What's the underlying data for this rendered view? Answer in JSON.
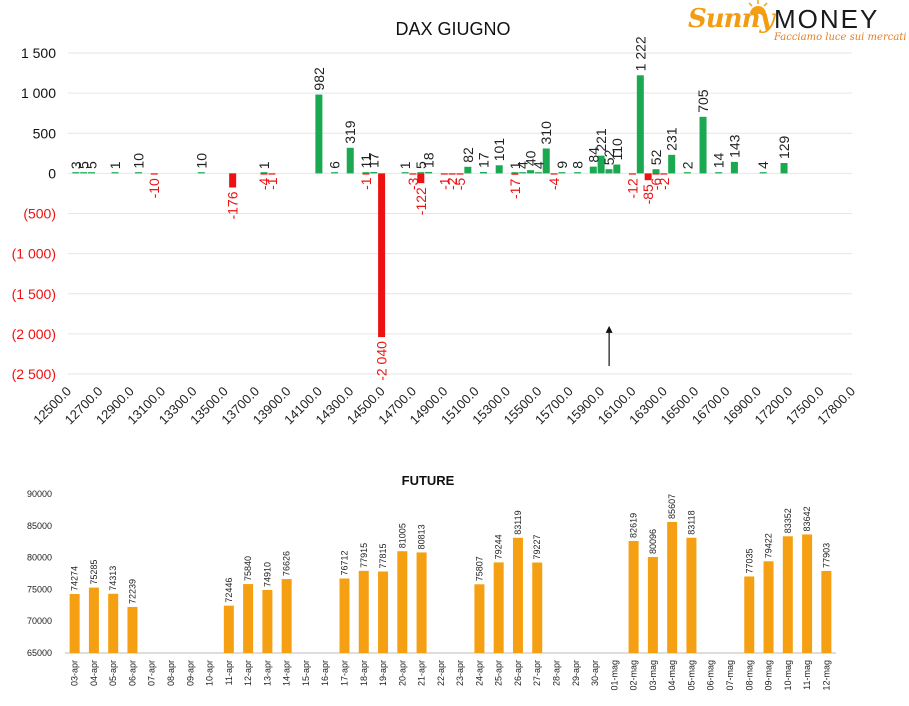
{
  "brand": {
    "name_part1": "Sunny",
    "name_part2": "MONEY",
    "tagline": "Facciamo luce sui mercati"
  },
  "colors": {
    "positive": "#1aa850",
    "negative": "#ee1111",
    "future_bar": "#f5a012",
    "negative_label": "#ee1111",
    "label": "#222222",
    "grid": "#e6e6e6"
  },
  "chart_data": [
    {
      "type": "bar",
      "title": "DAX GIUGNO",
      "ylim": [
        -2500,
        1500
      ],
      "yticks": [
        1500,
        1000,
        500,
        0,
        -500,
        -1000,
        -1500,
        -2000,
        -2500
      ],
      "ytick_labels": [
        "1 500",
        "1 000",
        "500",
        "0",
        "(500)",
        "(1 000)",
        "(1 500)",
        "(2 000)",
        "(2 500)"
      ],
      "xlim": [
        12500,
        17800
      ],
      "xtick_labels": [
        "12500.0",
        "12700.0",
        "12900.0",
        "13100.0",
        "13300.0",
        "13500.0",
        "13700.0",
        "13900.0",
        "14100.0",
        "14300.0",
        "14500.0",
        "14700.0",
        "14900.0",
        "15100.0",
        "15300.0",
        "15500.0",
        "15700.0",
        "15900.0",
        "16100.0",
        "16300.0",
        "16500.0",
        "16700.0",
        "16900.0",
        "17200.0",
        "17500.0",
        "17800.0"
      ],
      "series": [
        {
          "name": "calls",
          "points": [
            {
              "x": 12550,
              "y": 3,
              "label": "3"
            },
            {
              "x": 12600,
              "y": 5,
              "label": "5"
            },
            {
              "x": 12650,
              "y": 5,
              "label": "5"
            },
            {
              "x": 12800,
              "y": 1,
              "label": "1"
            },
            {
              "x": 12950,
              "y": 10,
              "label": "10"
            },
            {
              "x": 13350,
              "y": 10,
              "label": "10"
            },
            {
              "x": 13750,
              "y": 1,
              "label": "1"
            },
            {
              "x": 14100,
              "y": 982,
              "label": "982"
            },
            {
              "x": 14200,
              "y": 6,
              "label": "6"
            },
            {
              "x": 14300,
              "y": 319,
              "label": "319"
            },
            {
              "x": 14400,
              "y": 11,
              "label": "11"
            },
            {
              "x": 14450,
              "y": 17,
              "label": "17"
            },
            {
              "x": 14650,
              "y": 1,
              "label": "1"
            },
            {
              "x": 14750,
              "y": 5,
              "label": "5"
            },
            {
              "x": 14800,
              "y": 18,
              "label": "18"
            },
            {
              "x": 15050,
              "y": 82,
              "label": "82"
            },
            {
              "x": 15150,
              "y": 17,
              "label": "17"
            },
            {
              "x": 15250,
              "y": 101,
              "label": "101"
            },
            {
              "x": 15350,
              "y": 1,
              "label": "1"
            },
            {
              "x": 15400,
              "y": 4,
              "label": "4"
            },
            {
              "x": 15450,
              "y": 40,
              "label": "40"
            },
            {
              "x": 15500,
              "y": 4,
              "label": "4"
            },
            {
              "x": 15550,
              "y": 310,
              "label": "310"
            },
            {
              "x": 15650,
              "y": 9,
              "label": "9"
            },
            {
              "x": 15750,
              "y": 8,
              "label": "8"
            },
            {
              "x": 15850,
              "y": 84,
              "label": "84"
            },
            {
              "x": 15900,
              "y": 221,
              "label": "221"
            },
            {
              "x": 15950,
              "y": 52,
              "label": "52"
            },
            {
              "x": 16000,
              "y": 110,
              "label": "110"
            },
            {
              "x": 16150,
              "y": 1222,
              "label": "1 222"
            },
            {
              "x": 16250,
              "y": 52,
              "label": "52"
            },
            {
              "x": 16350,
              "y": 231,
              "label": "231"
            },
            {
              "x": 16450,
              "y": 2,
              "label": "2"
            },
            {
              "x": 16550,
              "y": 705,
              "label": "705"
            },
            {
              "x": 16650,
              "y": 14,
              "label": "14"
            },
            {
              "x": 16750,
              "y": 143,
              "label": "143"
            },
            {
              "x": 16950,
              "y": 4,
              "label": "4"
            },
            {
              "x": 17150,
              "y": 129,
              "label": "129"
            }
          ]
        },
        {
          "name": "puts",
          "points": [
            {
              "x": 13050,
              "y": -10,
              "label": "-10"
            },
            {
              "x": 13550,
              "y": -176,
              "label": "-176"
            },
            {
              "x": 13750,
              "y": -4,
              "label": "-4"
            },
            {
              "x": 13800,
              "y": -1,
              "label": "-1"
            },
            {
              "x": 14400,
              "y": -1,
              "label": "-1"
            },
            {
              "x": 14500,
              "y": -2040,
              "label": "-2 040"
            },
            {
              "x": 14700,
              "y": -3,
              "label": "-3"
            },
            {
              "x": 14750,
              "y": -122,
              "label": "-122"
            },
            {
              "x": 14900,
              "y": -1,
              "label": "-1"
            },
            {
              "x": 14950,
              "y": -2,
              "label": "-2"
            },
            {
              "x": 15000,
              "y": -5,
              "label": "-5"
            },
            {
              "x": 15350,
              "y": -17,
              "label": "-17"
            },
            {
              "x": 15600,
              "y": -4,
              "label": "-4"
            },
            {
              "x": 16100,
              "y": -12,
              "label": "-12"
            },
            {
              "x": 16200,
              "y": -85,
              "label": "-85"
            },
            {
              "x": 16250,
              "y": -6,
              "label": "-6"
            },
            {
              "x": 16300,
              "y": -2,
              "label": "-2"
            }
          ]
        }
      ],
      "annotation": {
        "type": "arrow",
        "x": 15900,
        "y_from": -2400,
        "y_to": -1900
      }
    },
    {
      "type": "bar",
      "title": "FUTURE",
      "ylim": [
        65000,
        90000
      ],
      "yticks": [
        90000,
        85000,
        80000,
        75000,
        70000,
        65000
      ],
      "ytick_labels": [
        "90000",
        "85000",
        "80000",
        "75000",
        "70000",
        "65000"
      ],
      "categories": [
        "03-apr",
        "04-apr",
        "05-apr",
        "06-apr",
        "07-apr",
        "08-apr",
        "09-apr",
        "10-apr",
        "11-apr",
        "12-apr",
        "13-apr",
        "14-apr",
        "15-apr",
        "16-apr",
        "17-apr",
        "18-apr",
        "19-apr",
        "20-apr",
        "21-apr",
        "22-apr",
        "23-apr",
        "24-apr",
        "25-apr",
        "26-apr",
        "27-apr",
        "28-apr",
        "29-apr",
        "30-apr",
        "01-mag",
        "02-mag",
        "03-mag",
        "04-mag",
        "05-mag",
        "06-mag",
        "07-mag",
        "08-mag",
        "09-mag",
        "10-mag",
        "11-mag",
        "12-mag"
      ],
      "values": [
        74274,
        75285,
        74313,
        72239,
        null,
        null,
        null,
        null,
        72446,
        75840,
        74910,
        76626,
        null,
        null,
        76712,
        77915,
        77815,
        81005,
        80813,
        null,
        null,
        75807,
        79244,
        83119,
        79227,
        null,
        null,
        null,
        null,
        82619,
        80096,
        85607,
        83118,
        null,
        null,
        77035,
        79422,
        83352,
        83642,
        77903
      ]
    }
  ]
}
